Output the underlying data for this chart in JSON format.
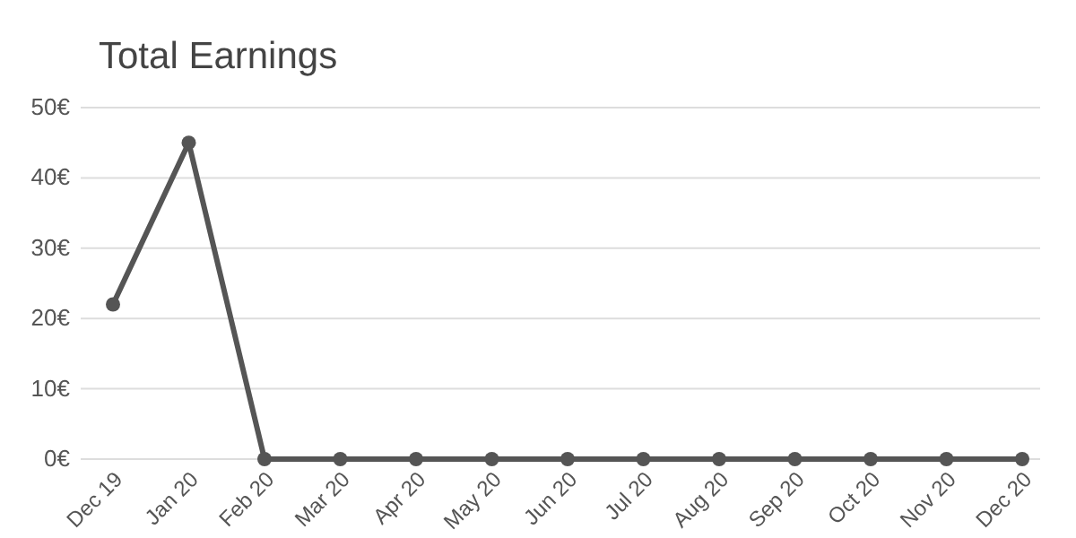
{
  "chart_data": {
    "type": "line",
    "title": "Total Earnings",
    "categories": [
      "Dec 19",
      "Jan 20",
      "Feb 20",
      "Mar 20",
      "Apr 20",
      "May 20",
      "Jun 20",
      "Jul 20",
      "Aug 20",
      "Sep 20",
      "Oct 20",
      "Nov 20",
      "Dec 20"
    ],
    "series": [
      {
        "color": "#555555",
        "values": [
          22,
          45,
          0,
          0,
          0,
          0,
          0,
          0,
          0,
          0,
          0,
          0,
          0
        ]
      }
    ],
    "ylim": [
      0,
      50
    ],
    "yticks": [
      {
        "value": 0,
        "label": "0€"
      },
      {
        "value": 10,
        "label": "10€"
      },
      {
        "value": 20,
        "label": "20€"
      },
      {
        "value": 30,
        "label": "30€"
      },
      {
        "value": 40,
        "label": "40€"
      },
      {
        "value": 50,
        "label": "50€"
      }
    ],
    "grid": "y",
    "marker": "circle"
  }
}
